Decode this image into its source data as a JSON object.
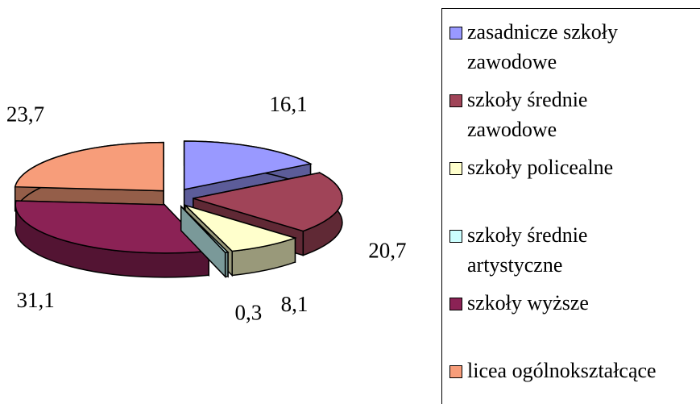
{
  "chart_data": {
    "type": "pie3d",
    "categories": [
      "zasadnicze szkoły zawodowe",
      "szkoły średnie zawodowe",
      "szkoły policealne",
      "szkoły średnie artystyczne",
      "szkoły wyższe",
      "licea ogólnokształcące"
    ],
    "values": [
      16.1,
      20.7,
      8.1,
      0.3,
      31.1,
      23.7
    ],
    "value_labels": [
      "16,1",
      "20,7",
      "8,1",
      "0,3",
      "31,1",
      "23,7"
    ],
    "colors": [
      "#9999ff",
      "#a04458",
      "#ffffcc",
      "#ccffff",
      "#8b2255",
      "#f79d7a"
    ],
    "legend": "right"
  }
}
